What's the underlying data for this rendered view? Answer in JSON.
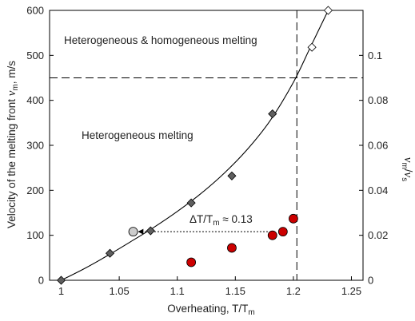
{
  "chart_data": {
    "type": "scatter",
    "xlabel": "Overheating, T/T",
    "xlabel_sub": "m",
    "ylabel": "Velocity of the melting front ",
    "ylabel_var": "v",
    "ylabel_var_sub": "m",
    "ylabel_unit": ", m/s",
    "y2label_num": "v",
    "y2label_num_sub": "m",
    "y2label_slash": "/",
    "y2label_den": "v",
    "y2label_den_sub": "s",
    "xlim": [
      0.99,
      1.26
    ],
    "ylim": [
      0,
      600
    ],
    "y2lim": [
      0,
      0.12
    ],
    "x_ticks": [
      1,
      1.05,
      1.1,
      1.15,
      1.2,
      1.25
    ],
    "x_tick_labels": [
      "1",
      "1.05",
      "1.1",
      "1.15",
      "1.2",
      "1.25"
    ],
    "y_ticks": [
      0,
      100,
      200,
      300,
      400,
      500,
      600
    ],
    "y_tick_labels": [
      "0",
      "100",
      "200",
      "300",
      "400",
      "500",
      "600"
    ],
    "y2_ticks": [
      0,
      0.02,
      0.04,
      0.06,
      0.08,
      0.1
    ],
    "y2_tick_labels": [
      "0",
      "0.02",
      "0.04",
      "0.06",
      "0.08",
      "0.1"
    ],
    "grid": false,
    "series": [
      {
        "marker": "diamond",
        "color": "#5f5f5f",
        "points": [
          [
            1.0,
            0
          ],
          [
            1.042,
            60
          ],
          [
            1.077,
            110
          ],
          [
            1.112,
            172
          ],
          [
            1.147,
            232
          ],
          [
            1.182,
            370
          ]
        ]
      },
      {
        "marker": "diamond-open",
        "color": "#ffffff",
        "points": [
          [
            1.216,
            518
          ],
          [
            1.23,
            600
          ]
        ]
      },
      {
        "marker": "circle",
        "color": "#cc0000",
        "points": [
          [
            1.112,
            40
          ],
          [
            1.147,
            72
          ],
          [
            1.182,
            100
          ],
          [
            1.191,
            108
          ],
          [
            1.2,
            137
          ]
        ]
      },
      {
        "marker": "circle",
        "color": "#cccccc",
        "points": [
          [
            1.062,
            108
          ]
        ]
      }
    ],
    "fit_curve": [
      [
        1.0,
        0
      ],
      [
        1.02,
        26
      ],
      [
        1.04,
        55
      ],
      [
        1.06,
        86
      ],
      [
        1.08,
        118
      ],
      [
        1.1,
        153
      ],
      [
        1.12,
        192
      ],
      [
        1.14,
        237
      ],
      [
        1.16,
        290
      ],
      [
        1.18,
        355
      ],
      [
        1.2,
        440
      ],
      [
        1.215,
        520
      ],
      [
        1.23,
        600
      ]
    ],
    "vline_x": 1.203,
    "hline_y": 450,
    "arrow": {
      "from": [
        1.178,
        108
      ],
      "to": [
        1.066,
        108
      ]
    },
    "annotations": {
      "region_top": "Heterogeneous & homogeneous melting",
      "region_bottom": "Heterogeneous melting",
      "delta_prefix": "ΔT/T",
      "delta_sub": "m",
      "delta_suffix": " ≈ 0.13"
    }
  }
}
